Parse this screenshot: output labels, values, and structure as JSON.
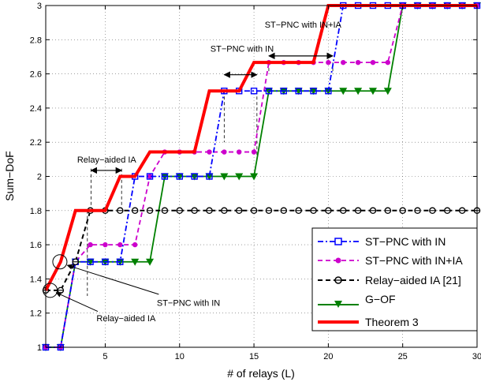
{
  "chart_data": {
    "type": "line",
    "xlabel": "# of relays (L)",
    "ylabel": "Sum−DoF",
    "xlim": [
      1,
      30
    ],
    "ylim": [
      1,
      3
    ],
    "x_ticks": [
      5,
      10,
      15,
      20,
      25,
      30
    ],
    "y_ticks": [
      1,
      1.2,
      1.4,
      1.6,
      1.8,
      2,
      2.2,
      2.4,
      2.6,
      2.8,
      3
    ],
    "x_tick_labels": [
      "5",
      "10",
      "15",
      "20",
      "25",
      "30"
    ],
    "y_tick_labels": [
      "1",
      "1.2",
      "1.4",
      "1.6",
      "1.8",
      "2",
      "2.2",
      "2.4",
      "2.6",
      "2.8",
      "3"
    ],
    "grid": true,
    "legend_position": "bottom-right",
    "series": [
      {
        "name": "ST−PNC with IN",
        "color": "#0000ff",
        "line_style": "dash-dot",
        "marker": "square",
        "x": [
          1,
          2,
          3,
          4,
          5,
          6,
          7,
          8,
          9,
          10,
          11,
          12,
          13,
          14,
          15,
          16,
          17,
          18,
          19,
          20,
          21,
          22,
          23,
          24,
          25,
          26,
          27,
          28,
          29,
          30
        ],
        "y": [
          1,
          1,
          1.5,
          1.5,
          1.5,
          1.5,
          2,
          2,
          2,
          2,
          2,
          2,
          2.5,
          2.5,
          2.5,
          2.5,
          2.5,
          2.5,
          2.5,
          2.5,
          3,
          3,
          3,
          3,
          3,
          3,
          3,
          3,
          3,
          3
        ]
      },
      {
        "name": "ST−PNC with IN+IA",
        "color": "#cc00cc",
        "line_style": "dashed",
        "marker": "circle-filled",
        "x": [
          1,
          2,
          3,
          4,
          5,
          6,
          7,
          8,
          9,
          10,
          11,
          12,
          13,
          14,
          15,
          16,
          17,
          18,
          19,
          20,
          21,
          22,
          23,
          24,
          25,
          26,
          27,
          28,
          29,
          30
        ],
        "y": [
          1,
          1,
          1.5,
          1.6,
          1.6,
          1.6,
          1.6,
          2,
          2.1429,
          2.1429,
          2.1429,
          2.1429,
          2.1429,
          2.1429,
          2.1429,
          2.6667,
          2.6667,
          2.6667,
          2.6667,
          2.6667,
          2.6667,
          2.6667,
          2.6667,
          2.6667,
          3,
          3,
          3,
          3,
          3,
          3
        ]
      },
      {
        "name": "Relay−aided IA [21]",
        "color": "#000000",
        "line_style": "dashed",
        "marker": "circle-open",
        "x": [
          1,
          2,
          3,
          4,
          5,
          6,
          7,
          8,
          9,
          10,
          11,
          12,
          13,
          14,
          15,
          16,
          17,
          18,
          19,
          20,
          21,
          22,
          23,
          24,
          25,
          26,
          27,
          28,
          29,
          30
        ],
        "y": [
          1.3333,
          1.3333,
          1.5,
          1.8,
          1.8,
          1.8,
          1.8,
          1.8,
          1.8,
          1.8,
          1.8,
          1.8,
          1.8,
          1.8,
          1.8,
          1.8,
          1.8,
          1.8,
          1.8,
          1.8,
          1.8,
          1.8,
          1.8,
          1.8,
          1.8,
          1.8,
          1.8,
          1.8,
          1.8,
          1.8
        ]
      },
      {
        "name": "G−OF",
        "color": "#008000",
        "line_style": "solid",
        "marker": "triangle-down",
        "x": [
          1,
          2,
          3,
          4,
          5,
          6,
          7,
          8,
          9,
          10,
          11,
          12,
          13,
          14,
          15,
          16,
          17,
          18,
          19,
          20,
          21,
          22,
          23,
          24,
          25,
          26,
          27,
          28,
          29,
          30
        ],
        "y": [
          1,
          1,
          1.5,
          1.5,
          1.5,
          1.5,
          1.5,
          1.5,
          2,
          2,
          2,
          2,
          2,
          2,
          2,
          2.5,
          2.5,
          2.5,
          2.5,
          2.5,
          2.5,
          2.5,
          2.5,
          2.5,
          3,
          3,
          3,
          3,
          3,
          3
        ]
      },
      {
        "name": "Theorem 3",
        "color": "#ff0000",
        "line_style": "solid-thick",
        "marker": "none",
        "x": [
          1,
          2,
          3,
          4,
          5,
          6,
          7,
          8,
          9,
          10,
          11,
          12,
          13,
          14,
          15,
          16,
          17,
          18,
          19,
          20,
          21,
          22,
          23,
          24,
          25,
          26,
          27,
          28,
          29,
          30
        ],
        "y": [
          1.3333,
          1.5,
          1.8,
          1.8,
          1.8,
          2,
          2,
          2.1429,
          2.1429,
          2.1429,
          2.1429,
          2.5,
          2.5,
          2.5,
          2.6667,
          2.6667,
          2.6667,
          2.6667,
          2.6667,
          3,
          3,
          3,
          3,
          3,
          3,
          3,
          3,
          3,
          3,
          3
        ]
      }
    ],
    "annotations": [
      {
        "text": "ST−PNC with IN+IA"
      },
      {
        "text": "ST−PNC with IN"
      },
      {
        "text": "Relay−aided IA"
      },
      {
        "text": "ST−PNC with IN"
      },
      {
        "text": "Relay−aided IA"
      }
    ]
  }
}
